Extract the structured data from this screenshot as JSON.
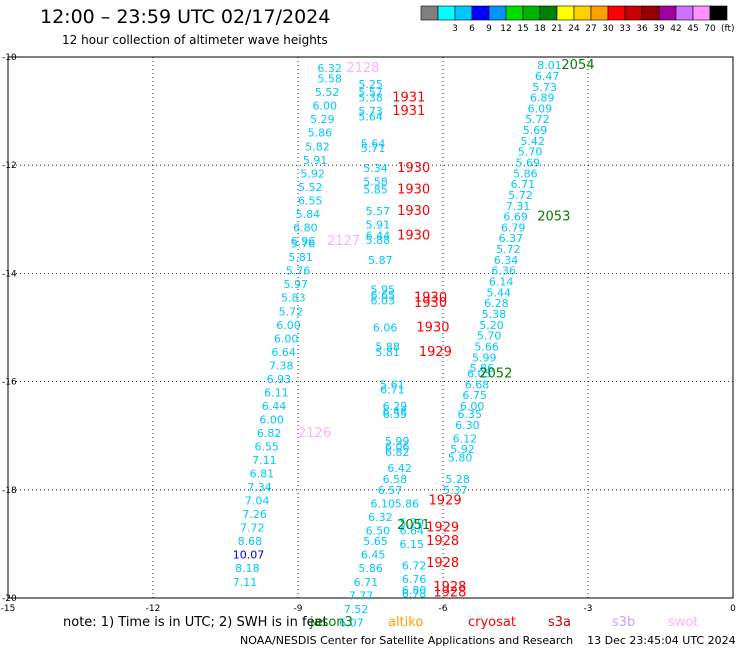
{
  "header": {
    "title": "12:00 – 23:59 UTC 02/17/2024",
    "subtitle": "12 hour collection of altimeter wave heights"
  },
  "colorbar": {
    "bins": [
      {
        "label": "",
        "color": "#808080"
      },
      {
        "label": "3",
        "color": "#00ffff"
      },
      {
        "label": "6",
        "color": "#00c8ff"
      },
      {
        "label": "9",
        "color": "#0000ff"
      },
      {
        "label": "12",
        "color": "#0096ff"
      },
      {
        "label": "15",
        "color": "#00e000"
      },
      {
        "label": "18",
        "color": "#00b400"
      },
      {
        "label": "21",
        "color": "#008000"
      },
      {
        "label": "24",
        "color": "#ffff00"
      },
      {
        "label": "27",
        "color": "#ffd000"
      },
      {
        "label": "30",
        "color": "#ffa000"
      },
      {
        "label": "33",
        "color": "#ff0000"
      },
      {
        "label": "36",
        "color": "#c80000"
      },
      {
        "label": "39",
        "color": "#960000"
      },
      {
        "label": "42",
        "color": "#a000a0"
      },
      {
        "label": "45",
        "color": "#d070ff"
      },
      {
        "label": "70",
        "color": "#ff90ff"
      },
      {
        "label": "",
        "color": "#000000"
      }
    ],
    "unit": "(ft)"
  },
  "legend": {
    "note": "note:  1) Time is in UTC; 2) SWH is in feet",
    "items": [
      {
        "label": "jason3",
        "color": "#008000"
      },
      {
        "label": "altiko",
        "color": "#ffa000"
      },
      {
        "label": "cryosat",
        "color": "#ff0000"
      },
      {
        "label": "s3a",
        "color": "#c80000"
      },
      {
        "label": "s3b",
        "color": "#c8a0ff"
      },
      {
        "label": "swot",
        "color": "#ffb0ff"
      }
    ]
  },
  "footer": {
    "credit": "NOAA/NESDIS Center for Satellite Applications and Research    13 Dec 23:45:04 UTC 2024"
  },
  "chart_data": {
    "type": "scatter",
    "xlim": [
      -15,
      0
    ],
    "ylim": [
      -20,
      -10
    ],
    "xticks": [
      "-15",
      "-12",
      "-9",
      "-6",
      "-3",
      "0"
    ],
    "yticks": [
      "-10",
      "-12",
      "-14",
      "-16",
      "-18",
      "-20"
    ],
    "grid": true,
    "labels": [
      {
        "text": "6.32",
        "x": -8.6,
        "y": -10.2,
        "color": "#00c8ff"
      },
      {
        "text": "5.58",
        "x": -8.6,
        "y": -10.4,
        "color": "#00c8ff"
      },
      {
        "text": "5.52",
        "x": -8.65,
        "y": -10.65,
        "color": "#00c8ff"
      },
      {
        "text": "6.00",
        "x": -8.7,
        "y": -10.9,
        "color": "#00c8ff"
      },
      {
        "text": "5.29",
        "x": -8.75,
        "y": -11.15,
        "color": "#00c8ff"
      },
      {
        "text": "5.86",
        "x": -8.8,
        "y": -11.4,
        "color": "#00c8ff"
      },
      {
        "text": "5.82",
        "x": -8.85,
        "y": -11.65,
        "color": "#00c8ff"
      },
      {
        "text": "5.91",
        "x": -8.9,
        "y": -11.9,
        "color": "#00c8ff"
      },
      {
        "text": "5.92",
        "x": -8.95,
        "y": -12.15,
        "color": "#00c8ff"
      },
      {
        "text": "5.52",
        "x": -9.0,
        "y": -12.4,
        "color": "#00c8ff"
      },
      {
        "text": "6.55",
        "x": -9.0,
        "y": -12.65,
        "color": "#00c8ff"
      },
      {
        "text": "5.84",
        "x": -9.05,
        "y": -12.9,
        "color": "#00c8ff"
      },
      {
        "text": "6.80",
        "x": -9.1,
        "y": -13.15,
        "color": "#00c8ff"
      },
      {
        "text": "6.96",
        "x": -9.15,
        "y": -13.4,
        "color": "#00c8ff"
      },
      {
        "text": "5.76",
        "x": -9.15,
        "y": -13.45,
        "color": "#00c8ff"
      },
      {
        "text": "5.81",
        "x": -9.2,
        "y": -13.7,
        "color": "#00c8ff"
      },
      {
        "text": "5.76",
        "x": -9.25,
        "y": -13.95,
        "color": "#00c8ff"
      },
      {
        "text": "5.97",
        "x": -9.3,
        "y": -14.2,
        "color": "#00c8ff"
      },
      {
        "text": "5.83",
        "x": -9.35,
        "y": -14.45,
        "color": "#00c8ff"
      },
      {
        "text": "5.72",
        "x": -9.4,
        "y": -14.7,
        "color": "#00c8ff"
      },
      {
        "text": "6.00",
        "x": -9.45,
        "y": -14.95,
        "color": "#00c8ff"
      },
      {
        "text": "6.00",
        "x": -9.5,
        "y": -15.2,
        "color": "#00c8ff"
      },
      {
        "text": "6.64",
        "x": -9.55,
        "y": -15.45,
        "color": "#00c8ff"
      },
      {
        "text": "7.38",
        "x": -9.6,
        "y": -15.7,
        "color": "#00c8ff"
      },
      {
        "text": "6.93",
        "x": -9.65,
        "y": -15.95,
        "color": "#00c8ff"
      },
      {
        "text": "6.11",
        "x": -9.7,
        "y": -16.2,
        "color": "#00c8ff"
      },
      {
        "text": "6.44",
        "x": -9.75,
        "y": -16.45,
        "color": "#00c8ff"
      },
      {
        "text": "6.00",
        "x": -9.8,
        "y": -16.7,
        "color": "#00c8ff"
      },
      {
        "text": "6.82",
        "x": -9.85,
        "y": -16.95,
        "color": "#00c8ff"
      },
      {
        "text": "6.55",
        "x": -9.9,
        "y": -17.2,
        "color": "#00c8ff"
      },
      {
        "text": "7.11",
        "x": -9.95,
        "y": -17.45,
        "color": "#00c8ff"
      },
      {
        "text": "6.81",
        "x": -10.0,
        "y": -17.7,
        "color": "#00c8ff"
      },
      {
        "text": "7.34",
        "x": -10.05,
        "y": -17.95,
        "color": "#00c8ff"
      },
      {
        "text": "7.04",
        "x": -10.1,
        "y": -18.2,
        "color": "#00c8ff"
      },
      {
        "text": "7.26",
        "x": -10.15,
        "y": -18.45,
        "color": "#00c8ff"
      },
      {
        "text": "7.72",
        "x": -10.2,
        "y": -18.7,
        "color": "#00c8ff"
      },
      {
        "text": "8.68",
        "x": -10.25,
        "y": -18.95,
        "color": "#00c8ff"
      },
      {
        "text": "10.07",
        "x": -10.35,
        "y": -19.2,
        "color": "#0000ff"
      },
      {
        "text": "8.18",
        "x": -10.3,
        "y": -19.45,
        "color": "#00c8ff"
      },
      {
        "text": "7.11",
        "x": -10.35,
        "y": -19.7,
        "color": "#00c8ff"
      },
      {
        "text": "2128",
        "x": -8.0,
        "y": -10.2,
        "color": "#ffb0ff"
      },
      {
        "text": "2127",
        "x": -8.4,
        "y": -13.4,
        "color": "#ffb0ff"
      },
      {
        "text": "2126",
        "x": -9.0,
        "y": -16.95,
        "color": "#ffb0ff"
      },
      {
        "text": "5.25",
        "x": -7.75,
        "y": -10.5,
        "color": "#00c8ff"
      },
      {
        "text": "5.57",
        "x": -7.75,
        "y": -10.65,
        "color": "#00c8ff"
      },
      {
        "text": "5.38",
        "x": -7.75,
        "y": -10.75,
        "color": "#00c8ff"
      },
      {
        "text": "5.73",
        "x": -7.75,
        "y": -11.0,
        "color": "#00c8ff"
      },
      {
        "text": "5.64",
        "x": -7.75,
        "y": -11.1,
        "color": "#00c8ff"
      },
      {
        "text": "5.64",
        "x": -7.7,
        "y": -11.6,
        "color": "#00c8ff"
      },
      {
        "text": "5.71",
        "x": -7.7,
        "y": -11.68,
        "color": "#00c8ff"
      },
      {
        "text": "5.34",
        "x": -7.65,
        "y": -12.05,
        "color": "#00c8ff"
      },
      {
        "text": "5.58",
        "x": -7.65,
        "y": -12.3,
        "color": "#00c8ff"
      },
      {
        "text": "5.85",
        "x": -7.65,
        "y": -12.45,
        "color": "#00c8ff"
      },
      {
        "text": "5.57",
        "x": -7.6,
        "y": -12.85,
        "color": "#00c8ff"
      },
      {
        "text": "5.91",
        "x": -7.6,
        "y": -13.1,
        "color": "#00c8ff"
      },
      {
        "text": "6.44",
        "x": -7.6,
        "y": -13.3,
        "color": "#00c8ff"
      },
      {
        "text": "5.88",
        "x": -7.6,
        "y": -13.38,
        "color": "#00c8ff"
      },
      {
        "text": "5.87",
        "x": -7.55,
        "y": -13.75,
        "color": "#00c8ff"
      },
      {
        "text": "5.95",
        "x": -7.5,
        "y": -14.3,
        "color": "#00c8ff"
      },
      {
        "text": "6.65",
        "x": -7.5,
        "y": -14.4,
        "color": "#00c8ff"
      },
      {
        "text": "6.03",
        "x": -7.5,
        "y": -14.5,
        "color": "#00c8ff"
      },
      {
        "text": "6.06",
        "x": -7.45,
        "y": -15.0,
        "color": "#00c8ff"
      },
      {
        "text": "5.88",
        "x": -7.4,
        "y": -15.35,
        "color": "#00c8ff"
      },
      {
        "text": "5.81",
        "x": -7.4,
        "y": -15.45,
        "color": "#00c8ff"
      },
      {
        "text": "5.61",
        "x": -7.3,
        "y": -16.05,
        "color": "#00c8ff"
      },
      {
        "text": "6.71",
        "x": -7.3,
        "y": -16.15,
        "color": "#00c8ff"
      },
      {
        "text": "6.29",
        "x": -7.25,
        "y": -16.45,
        "color": "#00c8ff"
      },
      {
        "text": "6.48",
        "x": -7.25,
        "y": -16.55,
        "color": "#00c8ff"
      },
      {
        "text": "6.55",
        "x": -7.25,
        "y": -16.6,
        "color": "#00c8ff"
      },
      {
        "text": "5.99",
        "x": -7.2,
        "y": -17.1,
        "color": "#00c8ff"
      },
      {
        "text": "6.06",
        "x": -7.2,
        "y": -17.2,
        "color": "#00c8ff"
      },
      {
        "text": "6.82",
        "x": -7.2,
        "y": -17.3,
        "color": "#00c8ff"
      },
      {
        "text": "6.42",
        "x": -7.15,
        "y": -17.6,
        "color": "#00c8ff"
      },
      {
        "text": "6.58",
        "x": -7.25,
        "y": -17.8,
        "color": "#00c8ff"
      },
      {
        "text": "6.57",
        "x": -7.35,
        "y": -18.0,
        "color": "#00c8ff"
      },
      {
        "text": "6.10",
        "x": -7.5,
        "y": -18.25,
        "color": "#00c8ff"
      },
      {
        "text": "6.32",
        "x": -7.55,
        "y": -18.5,
        "color": "#00c8ff"
      },
      {
        "text": "6.50",
        "x": -7.6,
        "y": -18.75,
        "color": "#00c8ff"
      },
      {
        "text": "5.65",
        "x": -7.65,
        "y": -18.95,
        "color": "#00c8ff"
      },
      {
        "text": "6.45",
        "x": -7.7,
        "y": -19.2,
        "color": "#00c8ff"
      },
      {
        "text": "5.86",
        "x": -7.75,
        "y": -19.45,
        "color": "#00c8ff"
      },
      {
        "text": "6.71",
        "x": -7.85,
        "y": -19.7,
        "color": "#00c8ff"
      },
      {
        "text": "7.77",
        "x": -7.95,
        "y": -19.95,
        "color": "#00c8ff"
      },
      {
        "text": "7.52",
        "x": -8.05,
        "y": -20.2,
        "color": "#00c8ff"
      },
      {
        "text": "6.07",
        "x": -8.15,
        "y": -20.45,
        "color": "#00c8ff"
      },
      {
        "text": "1931",
        "x": -7.05,
        "y": -10.75,
        "color": "#ff0000"
      },
      {
        "text": "1931",
        "x": -7.05,
        "y": -11.0,
        "color": "#ff0000"
      },
      {
        "text": "1930",
        "x": -6.95,
        "y": -12.05,
        "color": "#ff0000"
      },
      {
        "text": "1930",
        "x": -6.95,
        "y": -12.45,
        "color": "#ff0000"
      },
      {
        "text": "1930",
        "x": -6.95,
        "y": -12.85,
        "color": "#ff0000"
      },
      {
        "text": "1930",
        "x": -6.95,
        "y": -13.3,
        "color": "#ff0000"
      },
      {
        "text": "1930",
        "x": -6.6,
        "y": -14.45,
        "color": "#ff0000"
      },
      {
        "text": "1930",
        "x": -6.6,
        "y": -14.55,
        "color": "#ff0000"
      },
      {
        "text": "1930",
        "x": -6.55,
        "y": -15.0,
        "color": "#ff0000"
      },
      {
        "text": "1929",
        "x": -6.5,
        "y": -15.45,
        "color": "#ff0000"
      },
      {
        "text": "1929",
        "x": -6.3,
        "y": -18.2,
        "color": "#ff0000"
      },
      {
        "text": "1929",
        "x": -6.35,
        "y": -18.7,
        "color": "#ff0000"
      },
      {
        "text": "1928",
        "x": -6.35,
        "y": -18.95,
        "color": "#ff0000"
      },
      {
        "text": "1928",
        "x": -6.35,
        "y": -19.35,
        "color": "#ff0000"
      },
      {
        "text": "1928",
        "x": -6.2,
        "y": -19.8,
        "color": "#ff0000"
      },
      {
        "text": "1928",
        "x": -6.2,
        "y": -19.9,
        "color": "#ff0000"
      },
      {
        "text": "5.86",
        "x": -7.0,
        "y": -18.25,
        "color": "#00c8ff"
      },
      {
        "text": "5.79",
        "x": -6.9,
        "y": -18.6,
        "color": "#00c8ff"
      },
      {
        "text": "6.64",
        "x": -6.9,
        "y": -18.75,
        "color": "#00c8ff"
      },
      {
        "text": "6.15",
        "x": -6.9,
        "y": -19.0,
        "color": "#00c8ff"
      },
      {
        "text": "6.72",
        "x": -6.85,
        "y": -19.4,
        "color": "#00c8ff"
      },
      {
        "text": "6.76",
        "x": -6.85,
        "y": -19.65,
        "color": "#00c8ff"
      },
      {
        "text": "6.80",
        "x": -6.85,
        "y": -19.85,
        "color": "#00c8ff"
      },
      {
        "text": "6.78",
        "x": -6.85,
        "y": -19.92,
        "color": "#00c8ff"
      },
      {
        "text": "2051",
        "x": -6.95,
        "y": -18.65,
        "color": "#008000"
      },
      {
        "text": "8.01",
        "x": -4.05,
        "y": -10.15,
        "color": "#00c8ff"
      },
      {
        "text": "6.47",
        "x": -4.1,
        "y": -10.35,
        "color": "#00c8ff"
      },
      {
        "text": "5.73",
        "x": -4.15,
        "y": -10.55,
        "color": "#00c8ff"
      },
      {
        "text": "6.89",
        "x": -4.2,
        "y": -10.75,
        "color": "#00c8ff"
      },
      {
        "text": "6.09",
        "x": -4.25,
        "y": -10.95,
        "color": "#00c8ff"
      },
      {
        "text": "5.72",
        "x": -4.3,
        "y": -11.15,
        "color": "#00c8ff"
      },
      {
        "text": "5.69",
        "x": -4.35,
        "y": -11.35,
        "color": "#00c8ff"
      },
      {
        "text": "5.42",
        "x": -4.4,
        "y": -11.55,
        "color": "#00c8ff"
      },
      {
        "text": "5.70",
        "x": -4.45,
        "y": -11.75,
        "color": "#00c8ff"
      },
      {
        "text": "5.69",
        "x": -4.5,
        "y": -11.95,
        "color": "#00c8ff"
      },
      {
        "text": "5.86",
        "x": -4.55,
        "y": -12.15,
        "color": "#00c8ff"
      },
      {
        "text": "6.71",
        "x": -4.6,
        "y": -12.35,
        "color": "#00c8ff"
      },
      {
        "text": "5.72",
        "x": -4.65,
        "y": -12.55,
        "color": "#00c8ff"
      },
      {
        "text": "7.31",
        "x": -4.7,
        "y": -12.75,
        "color": "#00c8ff"
      },
      {
        "text": "6.69",
        "x": -4.75,
        "y": -12.95,
        "color": "#00c8ff"
      },
      {
        "text": "6.79",
        "x": -4.8,
        "y": -13.15,
        "color": "#00c8ff"
      },
      {
        "text": "6.37",
        "x": -4.85,
        "y": -13.35,
        "color": "#00c8ff"
      },
      {
        "text": "5.72",
        "x": -4.9,
        "y": -13.55,
        "color": "#00c8ff"
      },
      {
        "text": "6.34",
        "x": -4.95,
        "y": -13.75,
        "color": "#00c8ff"
      },
      {
        "text": "6.36",
        "x": -5.0,
        "y": -13.95,
        "color": "#00c8ff"
      },
      {
        "text": "6.14",
        "x": -5.05,
        "y": -14.15,
        "color": "#00c8ff"
      },
      {
        "text": "5.44",
        "x": -5.1,
        "y": -14.35,
        "color": "#00c8ff"
      },
      {
        "text": "6.28",
        "x": -5.15,
        "y": -14.55,
        "color": "#00c8ff"
      },
      {
        "text": "5.38",
        "x": -5.2,
        "y": -14.75,
        "color": "#00c8ff"
      },
      {
        "text": "5.20",
        "x": -5.25,
        "y": -14.95,
        "color": "#00c8ff"
      },
      {
        "text": "5.70",
        "x": -5.3,
        "y": -15.15,
        "color": "#00c8ff"
      },
      {
        "text": "5.66",
        "x": -5.35,
        "y": -15.35,
        "color": "#00c8ff"
      },
      {
        "text": "5.99",
        "x": -5.4,
        "y": -15.55,
        "color": "#00c8ff"
      },
      {
        "text": "5.86",
        "x": -5.45,
        "y": -15.75,
        "color": "#00c8ff"
      },
      {
        "text": "6.05",
        "x": -5.5,
        "y": -15.85,
        "color": "#00c8ff"
      },
      {
        "text": "6.68",
        "x": -5.55,
        "y": -16.05,
        "color": "#00c8ff"
      },
      {
        "text": "6.75",
        "x": -5.6,
        "y": -16.25,
        "color": "#00c8ff"
      },
      {
        "text": "6.00",
        "x": -5.65,
        "y": -16.45,
        "color": "#00c8ff"
      },
      {
        "text": "6.35",
        "x": -5.7,
        "y": -16.6,
        "color": "#00c8ff"
      },
      {
        "text": "6.30",
        "x": -5.75,
        "y": -16.8,
        "color": "#00c8ff"
      },
      {
        "text": "6.12",
        "x": -5.8,
        "y": -17.05,
        "color": "#00c8ff"
      },
      {
        "text": "5.92",
        "x": -5.85,
        "y": -17.25,
        "color": "#00c8ff"
      },
      {
        "text": "5.80",
        "x": -5.9,
        "y": -17.4,
        "color": "#00c8ff"
      },
      {
        "text": "5.28",
        "x": -5.95,
        "y": -17.8,
        "color": "#00c8ff"
      },
      {
        "text": "5.37",
        "x": -6.0,
        "y": -18.0,
        "color": "#00c8ff"
      },
      {
        "text": "2054",
        "x": -3.55,
        "y": -10.15,
        "color": "#008000"
      },
      {
        "text": "2053",
        "x": -4.05,
        "y": -12.95,
        "color": "#008000"
      },
      {
        "text": "2052",
        "x": -5.25,
        "y": -15.85,
        "color": "#008000"
      }
    ]
  }
}
